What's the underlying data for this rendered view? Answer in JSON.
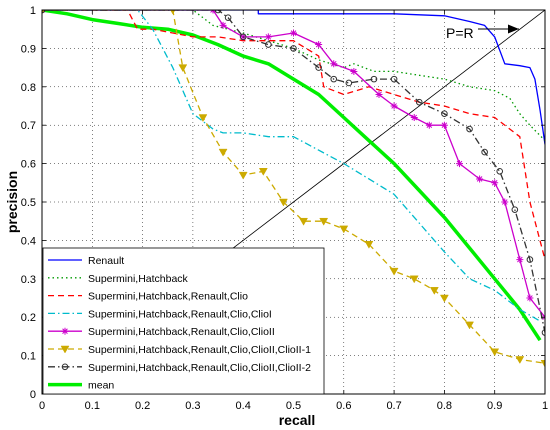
{
  "chart_data": {
    "type": "line",
    "xlabel": "recall",
    "ylabel": "precision",
    "xlim": [
      0,
      1
    ],
    "ylim": [
      0,
      1
    ],
    "xticks": [
      "0",
      "0.1",
      "0.2",
      "0.3",
      "0.4",
      "0.5",
      "0.6",
      "0.7",
      "0.8",
      "0.9",
      "1"
    ],
    "yticks": [
      "0",
      "0.1",
      "0.2",
      "0.3",
      "0.4",
      "0.5",
      "0.6",
      "0.7",
      "0.8",
      "0.9",
      "1"
    ],
    "grid": true,
    "legend_position": "bottom-left",
    "annotation": {
      "text": "P=R",
      "x": 0.85,
      "y": 0.955
    },
    "series": [
      {
        "name": "Renault",
        "color": "#0000ff",
        "style": "solid",
        "marker": "none",
        "x": [
          0,
          0.3,
          0.43,
          0.43,
          0.55,
          0.7,
          0.8,
          0.85,
          0.88,
          0.9,
          0.92,
          0.95,
          0.97,
          0.98,
          0.99,
          1.0
        ],
        "y": [
          1.0,
          1.0,
          1.0,
          0.99,
          0.99,
          0.99,
          0.985,
          0.97,
          0.96,
          0.93,
          0.86,
          0.855,
          0.85,
          0.82,
          0.74,
          0.65
        ]
      },
      {
        "name": "Supermini,Hatchback",
        "color": "#009900",
        "style": "dotted",
        "marker": "none",
        "x": [
          0,
          0.3,
          0.34,
          0.4,
          0.5,
          0.55,
          0.6,
          0.62,
          0.66,
          0.7,
          0.75,
          0.8,
          0.85,
          0.9,
          0.93,
          0.95,
          0.97,
          1.0
        ],
        "y": [
          1.0,
          1.0,
          0.96,
          0.94,
          0.9,
          0.87,
          0.85,
          0.86,
          0.84,
          0.84,
          0.83,
          0.82,
          0.8,
          0.79,
          0.77,
          0.73,
          0.7,
          0.66
        ]
      },
      {
        "name": "Supermini,Hatchback,Renault,Clio",
        "color": "#ff0000",
        "style": "dashed",
        "marker": "none",
        "x": [
          0,
          0.17,
          0.19,
          0.22,
          0.26,
          0.3,
          0.35,
          0.4,
          0.5,
          0.55,
          0.56,
          0.6,
          0.65,
          0.7,
          0.75,
          0.8,
          0.85,
          0.9,
          0.95,
          0.97,
          1.0
        ],
        "y": [
          1.0,
          1.0,
          0.95,
          0.95,
          0.94,
          0.93,
          0.93,
          0.92,
          0.92,
          0.88,
          0.8,
          0.78,
          0.8,
          0.78,
          0.76,
          0.75,
          0.73,
          0.72,
          0.67,
          0.5,
          0.35
        ]
      },
      {
        "name": "Supermini,Hatchback,Renault,Clio,ClioI",
        "color": "#00bbcc",
        "style": "dashdot",
        "marker": "none",
        "x": [
          0,
          0.19,
          0.22,
          0.26,
          0.3,
          0.34,
          0.36,
          0.4,
          0.45,
          0.5,
          0.6,
          0.7,
          0.8,
          0.85,
          0.9,
          0.95,
          0.99
        ],
        "y": [
          1.0,
          1.0,
          0.95,
          0.85,
          0.73,
          0.69,
          0.68,
          0.68,
          0.67,
          0.67,
          0.6,
          0.52,
          0.37,
          0.3,
          0.27,
          0.22,
          0.19
        ]
      },
      {
        "name": "Supermini,Hatchback,Renault,Clio,ClioII",
        "color": "#cc00cc",
        "style": "solid",
        "marker": "star",
        "x": [
          0,
          0.34,
          0.36,
          0.4,
          0.45,
          0.5,
          0.55,
          0.58,
          0.62,
          0.67,
          0.7,
          0.74,
          0.77,
          0.8,
          0.83,
          0.87,
          0.9,
          0.92,
          0.95,
          0.97,
          1.0
        ],
        "y": [
          1.0,
          1.0,
          0.96,
          0.93,
          0.93,
          0.94,
          0.91,
          0.86,
          0.84,
          0.78,
          0.75,
          0.72,
          0.7,
          0.7,
          0.6,
          0.56,
          0.55,
          0.5,
          0.35,
          0.25,
          0.2
        ]
      },
      {
        "name": "Supermini,Hatchback,Renault,Clio,ClioII,ClioII-1",
        "color": "#ccaa00",
        "style": "dashed",
        "marker": "triangle",
        "x": [
          0,
          0.26,
          0.28,
          0.32,
          0.36,
          0.4,
          0.44,
          0.48,
          0.52,
          0.56,
          0.6,
          0.65,
          0.7,
          0.74,
          0.78,
          0.8,
          0.85,
          0.9,
          0.95,
          1.0
        ],
        "y": [
          1.0,
          1.0,
          0.85,
          0.72,
          0.63,
          0.57,
          0.58,
          0.5,
          0.45,
          0.45,
          0.43,
          0.39,
          0.32,
          0.3,
          0.27,
          0.25,
          0.18,
          0.11,
          0.09,
          0.08
        ]
      },
      {
        "name": "Supermini,Hatchback,Renault,Clio,ClioII,ClioII-2",
        "color": "#333333",
        "style": "dashdot",
        "marker": "circle",
        "x": [
          0,
          0.35,
          0.37,
          0.4,
          0.45,
          0.5,
          0.55,
          0.58,
          0.61,
          0.66,
          0.7,
          0.75,
          0.8,
          0.85,
          0.88,
          0.91,
          0.94,
          0.97,
          1.0
        ],
        "y": [
          1.0,
          1.0,
          0.98,
          0.93,
          0.91,
          0.9,
          0.85,
          0.82,
          0.81,
          0.82,
          0.82,
          0.76,
          0.73,
          0.69,
          0.63,
          0.58,
          0.48,
          0.35,
          0.16
        ]
      },
      {
        "name": "mean",
        "color": "#00ee00",
        "style": "solid",
        "width": 3.5,
        "marker": "none",
        "x": [
          0,
          0.05,
          0.1,
          0.15,
          0.2,
          0.25,
          0.3,
          0.35,
          0.4,
          0.45,
          0.5,
          0.55,
          0.6,
          0.65,
          0.7,
          0.75,
          0.8,
          0.85,
          0.9,
          0.95,
          0.99
        ],
        "y": [
          1.0,
          0.99,
          0.975,
          0.965,
          0.955,
          0.95,
          0.935,
          0.91,
          0.88,
          0.86,
          0.82,
          0.78,
          0.72,
          0.66,
          0.6,
          0.53,
          0.46,
          0.38,
          0.3,
          0.22,
          0.14
        ]
      }
    ]
  }
}
